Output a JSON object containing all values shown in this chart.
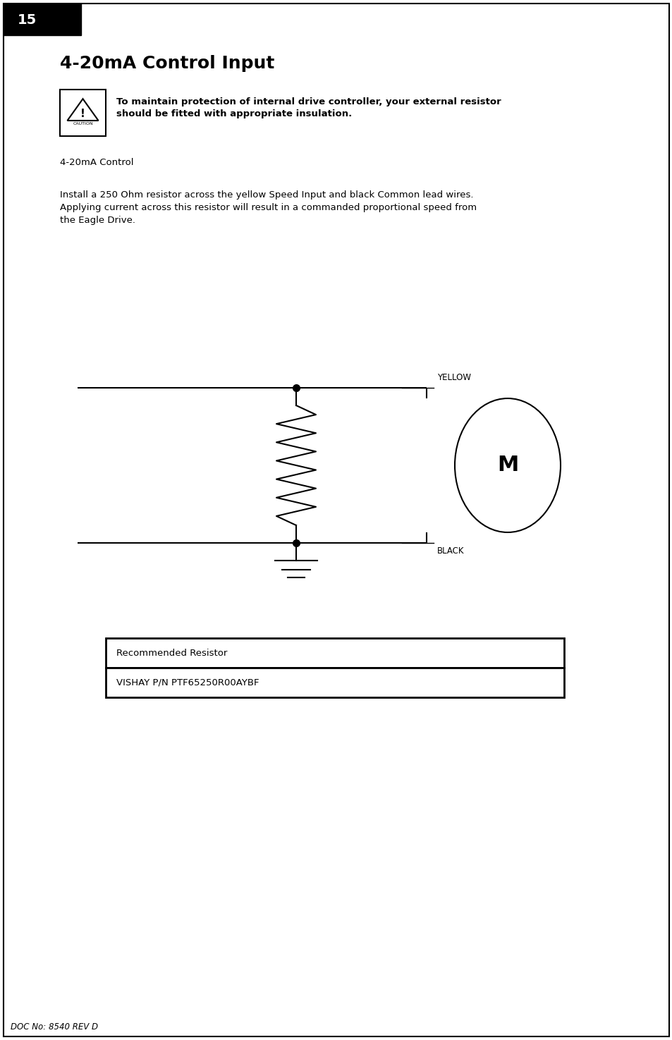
{
  "page_number": "15",
  "title": "4-20mA Control Input",
  "caution_text": "To maintain protection of internal drive controller, your external resistor\nshould be fitted with appropriate insulation.",
  "section_label": "4-20mA Control",
  "body_text": "Install a 250 Ohm resistor across the yellow Speed Input and black Common lead wires.\nApplying current across this resistor will result in a commanded proportional speed from\nthe Eagle Drive.",
  "yellow_label": "YELLOW",
  "black_label": "BLACK",
  "motor_label": "M",
  "table_header": "Recommended Resistor",
  "table_row": "VISHAY P/N PTF65250R00AYBF",
  "footer": "DOC No: 8540 REV D",
  "bg_color": "#ffffff",
  "line_color": "#000000",
  "page_bg": "#f0f0f0"
}
